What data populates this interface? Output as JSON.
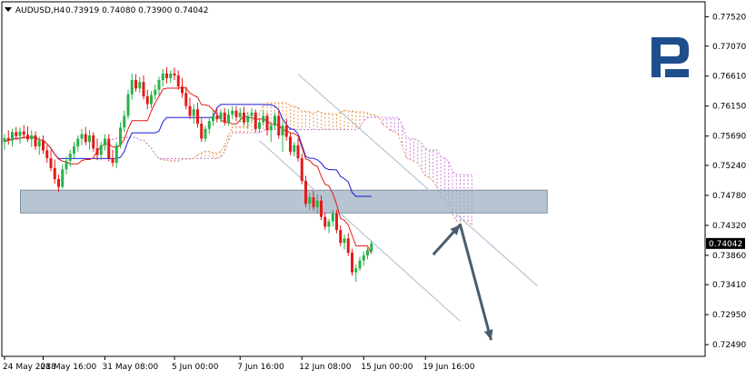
{
  "chart_data": {
    "type": "candlestick",
    "symbol": "AUDUSD",
    "timeframe": "H4",
    "header": {
      "symbol_tf": "AUDUSD,H4",
      "ohlc": "0.73919 0.74080 0.73900 0.74042"
    },
    "price_axis": {
      "ticks": [
        "0.77520",
        "0.77070",
        "0.76610",
        "0.76150",
        "0.75690",
        "0.75240",
        "0.74780",
        "0.74320",
        "0.73860",
        "0.73410",
        "0.72950",
        "0.72490"
      ],
      "ylim": [
        0.7231,
        0.7775
      ],
      "current_price_label": "0.74042",
      "current_price": 0.74042
    },
    "time_axis": {
      "labels": [
        "24 May 2018",
        "28 May 16:00",
        "31 May 08:00",
        "5 Jun 00:00",
        "7 Jun 16:00",
        "12 Jun 08:00",
        "15 Jun 00:00",
        "19 Jun 16:00"
      ],
      "label_bar_index": [
        0,
        10,
        26,
        44,
        61,
        77,
        93,
        109
      ]
    },
    "candles": [
      [
        0.756,
        0.7572,
        0.7548,
        0.7566
      ],
      [
        0.7566,
        0.7578,
        0.7556,
        0.7562
      ],
      [
        0.7562,
        0.758,
        0.7553,
        0.7575
      ],
      [
        0.7575,
        0.7583,
        0.7563,
        0.7569
      ],
      [
        0.7569,
        0.7582,
        0.7557,
        0.7576
      ],
      [
        0.7576,
        0.7586,
        0.7565,
        0.7571
      ],
      [
        0.7571,
        0.7584,
        0.756,
        0.7564
      ],
      [
        0.7564,
        0.7578,
        0.7552,
        0.757
      ],
      [
        0.757,
        0.7576,
        0.7548,
        0.7553
      ],
      [
        0.7553,
        0.7568,
        0.754,
        0.7562
      ],
      [
        0.7562,
        0.757,
        0.7542,
        0.7547
      ],
      [
        0.7547,
        0.7555,
        0.7528,
        0.7535
      ],
      [
        0.7535,
        0.7548,
        0.7515,
        0.752
      ],
      [
        0.752,
        0.7533,
        0.7496,
        0.7503
      ],
      [
        0.7503,
        0.751,
        0.7483,
        0.7491
      ],
      [
        0.7491,
        0.7525,
        0.7488,
        0.7518
      ],
      [
        0.7518,
        0.7537,
        0.751,
        0.7531
      ],
      [
        0.7531,
        0.7548,
        0.7522,
        0.7542
      ],
      [
        0.7542,
        0.756,
        0.7535,
        0.7553
      ],
      [
        0.7553,
        0.757,
        0.7545,
        0.7565
      ],
      [
        0.7565,
        0.758,
        0.7555,
        0.7572
      ],
      [
        0.7572,
        0.7583,
        0.7555,
        0.756
      ],
      [
        0.756,
        0.7578,
        0.7548,
        0.757
      ],
      [
        0.757,
        0.7575,
        0.7545,
        0.755
      ],
      [
        0.755,
        0.7565,
        0.7532,
        0.754
      ],
      [
        0.754,
        0.756,
        0.7532,
        0.7555
      ],
      [
        0.7555,
        0.7572,
        0.7547,
        0.7565
      ],
      [
        0.7565,
        0.7572,
        0.753,
        0.7535
      ],
      [
        0.7535,
        0.7548,
        0.7522,
        0.7528
      ],
      [
        0.7528,
        0.756,
        0.752,
        0.7555
      ],
      [
        0.7555,
        0.759,
        0.755,
        0.7582
      ],
      [
        0.7582,
        0.7608,
        0.7575,
        0.76
      ],
      [
        0.76,
        0.764,
        0.7595,
        0.7633
      ],
      [
        0.7633,
        0.7665,
        0.7625,
        0.7655
      ],
      [
        0.7655,
        0.7664,
        0.7637,
        0.7642
      ],
      [
        0.7642,
        0.766,
        0.7635,
        0.7652
      ],
      [
        0.7652,
        0.7662,
        0.7625,
        0.763
      ],
      [
        0.763,
        0.764,
        0.761,
        0.7618
      ],
      [
        0.7618,
        0.7638,
        0.7612,
        0.7632
      ],
      [
        0.7632,
        0.7648,
        0.7625,
        0.764
      ],
      [
        0.764,
        0.766,
        0.7632,
        0.7655
      ],
      [
        0.7655,
        0.7672,
        0.7645,
        0.7665
      ],
      [
        0.7665,
        0.7675,
        0.765,
        0.7658
      ],
      [
        0.7658,
        0.767,
        0.765,
        0.7665
      ],
      [
        0.7665,
        0.7674,
        0.7655,
        0.7662
      ],
      [
        0.7662,
        0.767,
        0.764,
        0.7645
      ],
      [
        0.7645,
        0.7658,
        0.7628,
        0.7635
      ],
      [
        0.7635,
        0.7645,
        0.761,
        0.7615
      ],
      [
        0.7615,
        0.7628,
        0.7595,
        0.76
      ],
      [
        0.76,
        0.7618,
        0.7588,
        0.761
      ],
      [
        0.761,
        0.762,
        0.7582,
        0.7588
      ],
      [
        0.7588,
        0.7596,
        0.756,
        0.7565
      ],
      [
        0.7565,
        0.7585,
        0.756,
        0.758
      ],
      [
        0.758,
        0.7598,
        0.7572,
        0.7592
      ],
      [
        0.7592,
        0.7608,
        0.7585,
        0.76
      ],
      [
        0.76,
        0.7612,
        0.759,
        0.7595
      ],
      [
        0.7595,
        0.761,
        0.759,
        0.7605
      ],
      [
        0.7605,
        0.7612,
        0.7585,
        0.759
      ],
      [
        0.759,
        0.761,
        0.7585,
        0.7602
      ],
      [
        0.7602,
        0.7615,
        0.7595,
        0.7608
      ],
      [
        0.7608,
        0.7615,
        0.7592,
        0.7598
      ],
      [
        0.7598,
        0.7612,
        0.759,
        0.7605
      ],
      [
        0.7605,
        0.7614,
        0.7585,
        0.759
      ],
      [
        0.759,
        0.7606,
        0.758,
        0.76
      ],
      [
        0.76,
        0.7612,
        0.7592,
        0.7605
      ],
      [
        0.7605,
        0.761,
        0.7575,
        0.758
      ],
      [
        0.758,
        0.7595,
        0.7575,
        0.759
      ],
      [
        0.759,
        0.7608,
        0.7585,
        0.76
      ],
      [
        0.76,
        0.7605,
        0.757,
        0.7578
      ],
      [
        0.7578,
        0.759,
        0.756,
        0.7585
      ],
      [
        0.7585,
        0.7605,
        0.758,
        0.76
      ],
      [
        0.76,
        0.7608,
        0.7565,
        0.757
      ],
      [
        0.757,
        0.759,
        0.7545,
        0.7585
      ],
      [
        0.7585,
        0.7595,
        0.7562,
        0.7568
      ],
      [
        0.7568,
        0.7575,
        0.754,
        0.7545
      ],
      [
        0.7545,
        0.756,
        0.7538,
        0.7555
      ],
      [
        0.7555,
        0.7565,
        0.753,
        0.7535
      ],
      [
        0.7535,
        0.7542,
        0.7495,
        0.75
      ],
      [
        0.75,
        0.7508,
        0.746,
        0.7465
      ],
      [
        0.7465,
        0.7482,
        0.7455,
        0.7475
      ],
      [
        0.7475,
        0.7485,
        0.7455,
        0.746
      ],
      [
        0.746,
        0.748,
        0.745,
        0.747
      ],
      [
        0.747,
        0.7478,
        0.744,
        0.7445
      ],
      [
        0.7445,
        0.7452,
        0.7425,
        0.743
      ],
      [
        0.743,
        0.7442,
        0.742,
        0.7438
      ],
      [
        0.7438,
        0.7455,
        0.743,
        0.745
      ],
      [
        0.745,
        0.7456,
        0.742,
        0.7425
      ],
      [
        0.7425,
        0.7432,
        0.74,
        0.7405
      ],
      [
        0.7405,
        0.7418,
        0.7395,
        0.7412
      ],
      [
        0.7412,
        0.742,
        0.7385,
        0.739
      ],
      [
        0.739,
        0.7396,
        0.7355,
        0.736
      ],
      [
        0.736,
        0.7372,
        0.7345,
        0.7366
      ],
      [
        0.7366,
        0.7384,
        0.7362,
        0.7378
      ],
      [
        0.7378,
        0.7392,
        0.737,
        0.7386
      ],
      [
        0.7386,
        0.7398,
        0.738,
        0.7394
      ],
      [
        0.7392,
        0.7408,
        0.739,
        0.7404
      ]
    ],
    "overlays": {
      "resistance_zone": {
        "price_top": 0.7486,
        "price_bottom": 0.7451,
        "from_bar": 10,
        "to_bar": 137
      },
      "forecast_arrow": {
        "points": [
          [
            111,
            0.7387
          ],
          [
            118,
            0.7433
          ],
          [
            126,
            0.7256
          ]
        ]
      },
      "channel_upper": [
        [
          76,
          0.7664
        ],
        [
          138,
          0.7339
        ]
      ],
      "channel_lower": [
        [
          66,
          0.7562
        ],
        [
          118,
          0.7285
        ]
      ]
    },
    "grid": false,
    "legend": "none"
  },
  "logo": {
    "name": "roboforex-logo",
    "color": "#1f4e8c"
  },
  "colors": {
    "bull": "#27b34a",
    "bear": "#e41a1a",
    "kijun": "#1a1ad6",
    "tenkan": "#e41a1a",
    "cloud_a": "#e59d58",
    "cloud_b": "#c77ed4",
    "channel": "#b4c4d4",
    "zone": "#9fb0c2",
    "arrow": "#4a5d6e"
  }
}
